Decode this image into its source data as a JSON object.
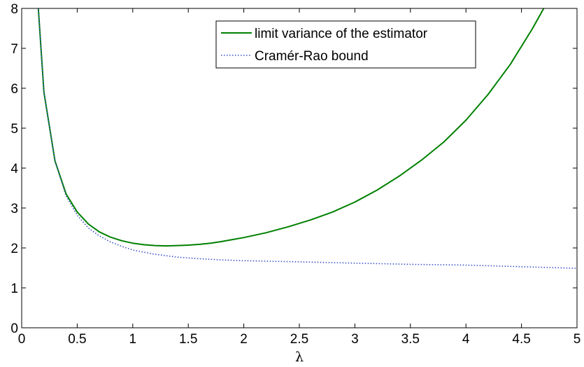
{
  "chart_data": {
    "type": "line",
    "title": "",
    "xlabel": "λ",
    "ylabel": "",
    "xlim": [
      0,
      5
    ],
    "ylim": [
      0,
      8
    ],
    "grid": false,
    "legend_position": "top-right",
    "xticks": [
      "0",
      "0.5",
      "1",
      "1.5",
      "2",
      "2.5",
      "3",
      "3.5",
      "4",
      "4.5",
      "5"
    ],
    "yticks": [
      "0",
      "1",
      "2",
      "3",
      "4",
      "5",
      "6",
      "7",
      "8"
    ],
    "series": [
      {
        "name": "limit variance of the estimator",
        "color": "#008000",
        "style": "solid",
        "x": [
          0.15,
          0.2,
          0.3,
          0.4,
          0.5,
          0.6,
          0.7,
          0.8,
          0.9,
          1.0,
          1.1,
          1.2,
          1.3,
          1.4,
          1.5,
          1.6,
          1.7,
          1.8,
          1.9,
          2.0,
          2.2,
          2.4,
          2.6,
          2.8,
          3.0,
          3.2,
          3.4,
          3.6,
          3.8,
          4.0,
          4.2,
          4.4,
          4.6,
          4.7
        ],
        "y": [
          8.0,
          5.9,
          4.18,
          3.35,
          2.9,
          2.6,
          2.4,
          2.27,
          2.18,
          2.12,
          2.08,
          2.06,
          2.05,
          2.06,
          2.07,
          2.09,
          2.12,
          2.16,
          2.21,
          2.26,
          2.38,
          2.53,
          2.7,
          2.9,
          3.15,
          3.45,
          3.8,
          4.2,
          4.65,
          5.2,
          5.85,
          6.6,
          7.5,
          8.0
        ]
      },
      {
        "name": "Cramér-Rao bound",
        "color": "#3a4fc8",
        "style": "dotted",
        "x": [
          0.15,
          0.2,
          0.3,
          0.4,
          0.5,
          0.6,
          0.7,
          0.8,
          0.9,
          1.0,
          1.2,
          1.4,
          1.6,
          1.8,
          2.0,
          2.5,
          3.0,
          3.5,
          4.0,
          4.5,
          5.0
        ],
        "y": [
          8.0,
          5.9,
          4.18,
          3.3,
          2.82,
          2.5,
          2.3,
          2.15,
          2.04,
          1.95,
          1.84,
          1.77,
          1.73,
          1.7,
          1.68,
          1.65,
          1.62,
          1.59,
          1.57,
          1.53,
          1.49
        ]
      }
    ]
  }
}
